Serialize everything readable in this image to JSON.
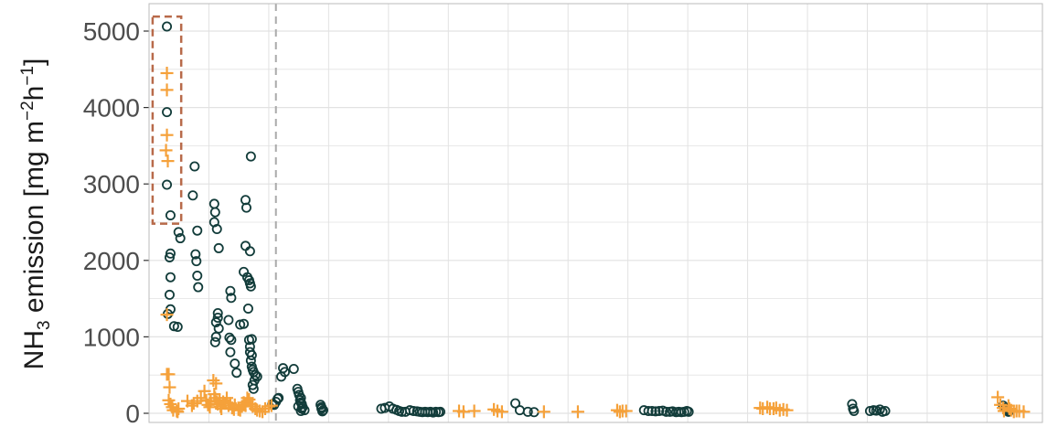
{
  "chart_data": {
    "type": "scatter",
    "title": "",
    "xlabel": "",
    "ylabel": {
      "parts": [
        "NH",
        "3",
        " emission [mg m",
        "−2",
        "h",
        "−1",
        "]"
      ]
    },
    "ylim": [
      -120,
      5200
    ],
    "xlim": [
      0,
      100
    ],
    "yticks": [
      0,
      1000,
      2000,
      3000,
      4000,
      5000
    ],
    "grid": true,
    "legend": "none",
    "vline_x": 14.2,
    "highlight_box": {
      "x0": 0.4,
      "x1": 3.6,
      "y0": 2480,
      "y1": 5190
    },
    "colors": {
      "circles": "#123c3a",
      "crosses": "#f5a13a",
      "box": "#b86a4a",
      "vline": "#aaaaaa",
      "grid": "#e2e2e2",
      "border": "#bbbbbb"
    },
    "series": [
      {
        "marker": "circle",
        "points": [
          [
            2.0,
            5060
          ],
          [
            2.0,
            3940
          ],
          [
            2.0,
            2990
          ],
          [
            2.4,
            2590
          ],
          [
            3.3,
            2370
          ],
          [
            3.5,
            2290
          ],
          [
            2.4,
            2090
          ],
          [
            2.3,
            2040
          ],
          [
            2.4,
            1780
          ],
          [
            2.3,
            1550
          ],
          [
            2.4,
            1360
          ],
          [
            2.1,
            1300
          ],
          [
            2.8,
            1140
          ],
          [
            3.2,
            1130
          ],
          [
            5.1,
            3230
          ],
          [
            4.9,
            2850
          ],
          [
            5.4,
            2390
          ],
          [
            5.2,
            2080
          ],
          [
            5.3,
            1990
          ],
          [
            5.4,
            1800
          ],
          [
            5.5,
            1650
          ],
          [
            7.3,
            2740
          ],
          [
            7.4,
            2630
          ],
          [
            7.3,
            2500
          ],
          [
            7.6,
            2410
          ],
          [
            7.8,
            2160
          ],
          [
            7.7,
            1310
          ],
          [
            7.7,
            1250
          ],
          [
            7.5,
            1190
          ],
          [
            7.8,
            1110
          ],
          [
            7.5,
            1000
          ],
          [
            7.4,
            930
          ],
          [
            9.1,
            1600
          ],
          [
            9.2,
            1510
          ],
          [
            8.9,
            1220
          ],
          [
            9.0,
            990
          ],
          [
            9.2,
            960
          ],
          [
            9.1,
            800
          ],
          [
            9.6,
            650
          ],
          [
            9.8,
            530
          ],
          [
            11.4,
            3360
          ],
          [
            10.8,
            2790
          ],
          [
            10.9,
            2690
          ],
          [
            10.8,
            2190
          ],
          [
            11.3,
            2120
          ],
          [
            10.6,
            1850
          ],
          [
            11.0,
            1780
          ],
          [
            11.2,
            1740
          ],
          [
            11.3,
            1700
          ],
          [
            11.4,
            1660
          ],
          [
            11.1,
            1370
          ],
          [
            10.6,
            1170
          ],
          [
            10.2,
            1160
          ],
          [
            11.2,
            960
          ],
          [
            11.5,
            970
          ],
          [
            11.3,
            870
          ],
          [
            11.3,
            800
          ],
          [
            11.5,
            760
          ],
          [
            11.4,
            690
          ],
          [
            11.5,
            610
          ],
          [
            11.6,
            570
          ],
          [
            11.7,
            540
          ],
          [
            11.9,
            500
          ],
          [
            12.1,
            480
          ],
          [
            11.8,
            430
          ],
          [
            11.6,
            370
          ],
          [
            11.7,
            320
          ],
          [
            13.8,
            120
          ],
          [
            14.0,
            110
          ],
          [
            14.2,
            150
          ],
          [
            14.4,
            190
          ],
          [
            14.5,
            200
          ],
          [
            14.8,
            480
          ],
          [
            15.2,
            540
          ],
          [
            16.2,
            580
          ],
          [
            15.0,
            590
          ],
          [
            16.6,
            320
          ],
          [
            16.7,
            280
          ],
          [
            16.8,
            240
          ],
          [
            17.0,
            200
          ],
          [
            16.9,
            170
          ],
          [
            17.0,
            140
          ],
          [
            17.1,
            120
          ],
          [
            16.7,
            90
          ],
          [
            17.2,
            80
          ],
          [
            17.1,
            60
          ],
          [
            17.4,
            40
          ],
          [
            17.0,
            30
          ],
          [
            19.2,
            110
          ],
          [
            19.3,
            80
          ],
          [
            19.3,
            60
          ],
          [
            19.5,
            40
          ],
          [
            19.4,
            25
          ],
          [
            26.0,
            60
          ],
          [
            26.4,
            70
          ],
          [
            26.9,
            90
          ],
          [
            27.3,
            60
          ],
          [
            27.7,
            45
          ],
          [
            28.0,
            30
          ],
          [
            28.3,
            20
          ],
          [
            28.7,
            20
          ],
          [
            29.2,
            40
          ],
          [
            29.6,
            30
          ],
          [
            30.0,
            25
          ],
          [
            30.3,
            20
          ],
          [
            30.6,
            15
          ],
          [
            30.9,
            20
          ],
          [
            31.2,
            15
          ],
          [
            31.5,
            20
          ],
          [
            31.8,
            10
          ],
          [
            32.1,
            20
          ],
          [
            32.4,
            15
          ],
          [
            32.6,
            20
          ],
          [
            41.0,
            130
          ],
          [
            41.5,
            40
          ],
          [
            42.4,
            20
          ],
          [
            43.1,
            15
          ],
          [
            55.4,
            40
          ],
          [
            55.9,
            30
          ],
          [
            56.3,
            30
          ],
          [
            56.7,
            25
          ],
          [
            57.1,
            30
          ],
          [
            57.5,
            35
          ],
          [
            57.9,
            20
          ],
          [
            58.3,
            20
          ],
          [
            58.6,
            25
          ],
          [
            59.0,
            15
          ],
          [
            59.3,
            20
          ],
          [
            59.6,
            15
          ],
          [
            59.9,
            20
          ],
          [
            60.2,
            30
          ],
          [
            60.4,
            20
          ],
          [
            78.7,
            120
          ],
          [
            78.8,
            60
          ],
          [
            78.9,
            30
          ],
          [
            80.7,
            30
          ],
          [
            81.1,
            40
          ],
          [
            81.4,
            35
          ],
          [
            81.8,
            50
          ],
          [
            82.1,
            20
          ],
          [
            82.4,
            30
          ],
          [
            95.6,
            100
          ],
          [
            95.9,
            70
          ],
          [
            96.0,
            60
          ],
          [
            96.1,
            40
          ],
          [
            96.2,
            20
          ]
        ]
      },
      {
        "marker": "plus",
        "points": [
          [
            2.0,
            4450
          ],
          [
            2.0,
            4230
          ],
          [
            2.0,
            3640
          ],
          [
            1.9,
            3440
          ],
          [
            2.1,
            3300
          ],
          [
            2.0,
            1290
          ],
          [
            2.0,
            510
          ],
          [
            2.2,
            510
          ],
          [
            2.3,
            340
          ],
          [
            2.2,
            170
          ],
          [
            2.4,
            120
          ],
          [
            2.6,
            80
          ],
          [
            2.7,
            40
          ],
          [
            3.1,
            30
          ],
          [
            3.2,
            20
          ],
          [
            3.3,
            60
          ],
          [
            4.3,
            160
          ],
          [
            4.8,
            100
          ],
          [
            5.0,
            130
          ],
          [
            5.4,
            160
          ],
          [
            5.8,
            200
          ],
          [
            6.2,
            290
          ],
          [
            6.4,
            170
          ],
          [
            6.6,
            110
          ],
          [
            6.8,
            80
          ],
          [
            6.9,
            160
          ],
          [
            7.2,
            430
          ],
          [
            7.5,
            390
          ],
          [
            7.3,
            250
          ],
          [
            7.4,
            200
          ],
          [
            7.6,
            150
          ],
          [
            7.7,
            120
          ],
          [
            7.9,
            170
          ],
          [
            8.0,
            90
          ],
          [
            8.1,
            60
          ],
          [
            8.3,
            150
          ],
          [
            8.5,
            130
          ],
          [
            8.7,
            200
          ],
          [
            8.9,
            100
          ],
          [
            9.1,
            130
          ],
          [
            9.3,
            70
          ],
          [
            9.5,
            50
          ],
          [
            9.6,
            110
          ],
          [
            10.0,
            50
          ],
          [
            10.2,
            40
          ],
          [
            10.4,
            90
          ],
          [
            10.6,
            140
          ],
          [
            10.8,
            100
          ],
          [
            11.0,
            200
          ],
          [
            11.2,
            180
          ],
          [
            11.4,
            120
          ],
          [
            11.6,
            90
          ],
          [
            11.9,
            60
          ],
          [
            12.1,
            40
          ],
          [
            12.4,
            30
          ],
          [
            12.7,
            20
          ],
          [
            13.0,
            60
          ],
          [
            13.4,
            90
          ],
          [
            13.7,
            100
          ],
          [
            34.7,
            30
          ],
          [
            35.2,
            20
          ],
          [
            36.4,
            30
          ],
          [
            38.6,
            50
          ],
          [
            39.0,
            30
          ],
          [
            39.5,
            20
          ],
          [
            44.2,
            20
          ],
          [
            48.0,
            20
          ],
          [
            52.4,
            40
          ],
          [
            52.7,
            20
          ],
          [
            53.0,
            30
          ],
          [
            53.4,
            30
          ],
          [
            68.4,
            70
          ],
          [
            68.7,
            60
          ],
          [
            69.2,
            80
          ],
          [
            69.5,
            60
          ],
          [
            69.9,
            60
          ],
          [
            70.2,
            70
          ],
          [
            70.6,
            40
          ],
          [
            71.0,
            50
          ],
          [
            71.4,
            40
          ],
          [
            95.0,
            210
          ],
          [
            95.3,
            110
          ],
          [
            95.6,
            70
          ],
          [
            95.7,
            30
          ],
          [
            96.2,
            100
          ],
          [
            96.3,
            60
          ],
          [
            96.5,
            40
          ],
          [
            96.8,
            20
          ],
          [
            97.1,
            30
          ],
          [
            97.4,
            30
          ],
          [
            97.9,
            20
          ]
        ]
      }
    ]
  }
}
